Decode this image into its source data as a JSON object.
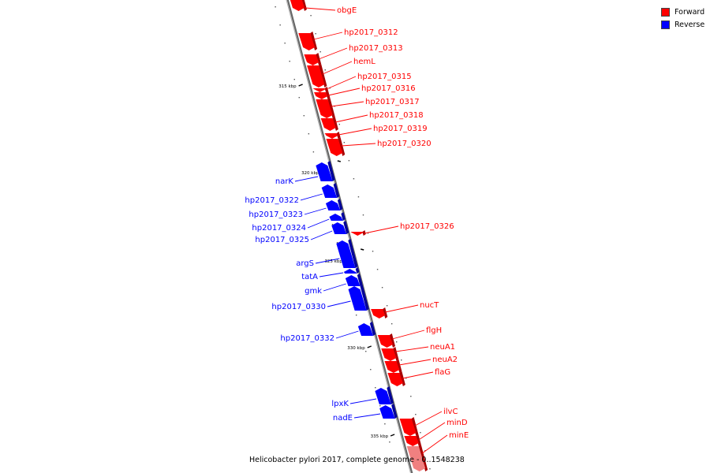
{
  "caption": "Helicobacter pylori 2017, complete genome - 0..1548238",
  "legend": [
    {
      "label": "Forward",
      "color": "#ff0000"
    },
    {
      "label": "Reverse",
      "color": "#0000ff"
    }
  ],
  "colors": {
    "forward": "#ff0000",
    "reverse": "#0000ff",
    "backbone": "#888888",
    "highlight": "#f08080"
  },
  "ticks": [
    {
      "label": "315 kbp"
    },
    {
      "label": "320 kbp"
    },
    {
      "label": "325 kbp"
    },
    {
      "label": "330 kbp"
    },
    {
      "label": "335 kbp"
    }
  ],
  "genes": [
    {
      "name": "obgE",
      "strand": "forward"
    },
    {
      "name": "hp2017_0312",
      "strand": "forward"
    },
    {
      "name": "hp2017_0313",
      "strand": "forward"
    },
    {
      "name": "hemL",
      "strand": "forward"
    },
    {
      "name": "hp2017_0315",
      "strand": "forward"
    },
    {
      "name": "hp2017_0316",
      "strand": "forward"
    },
    {
      "name": "hp2017_0317",
      "strand": "forward"
    },
    {
      "name": "hp2017_0318",
      "strand": "forward"
    },
    {
      "name": "hp2017_0319",
      "strand": "forward"
    },
    {
      "name": "hp2017_0320",
      "strand": "forward"
    },
    {
      "name": "narK",
      "strand": "reverse"
    },
    {
      "name": "hp2017_0322",
      "strand": "reverse"
    },
    {
      "name": "hp2017_0323",
      "strand": "reverse"
    },
    {
      "name": "hp2017_0324",
      "strand": "reverse"
    },
    {
      "name": "hp2017_0325",
      "strand": "reverse"
    },
    {
      "name": "hp2017_0326",
      "strand": "forward"
    },
    {
      "name": "argS",
      "strand": "reverse"
    },
    {
      "name": "tatA",
      "strand": "reverse"
    },
    {
      "name": "gmk",
      "strand": "reverse"
    },
    {
      "name": "hp2017_0330",
      "strand": "reverse"
    },
    {
      "name": "nucT",
      "strand": "forward"
    },
    {
      "name": "hp2017_0332",
      "strand": "reverse"
    },
    {
      "name": "flgH",
      "strand": "forward"
    },
    {
      "name": "neuA1",
      "strand": "forward"
    },
    {
      "name": "neuA2",
      "strand": "forward"
    },
    {
      "name": "flaG",
      "strand": "forward"
    },
    {
      "name": "lpxK",
      "strand": "reverse"
    },
    {
      "name": "nadE",
      "strand": "reverse"
    },
    {
      "name": "ilvC",
      "strand": "forward"
    },
    {
      "name": "minD",
      "strand": "forward"
    },
    {
      "name": "minE",
      "strand": "forward"
    }
  ]
}
